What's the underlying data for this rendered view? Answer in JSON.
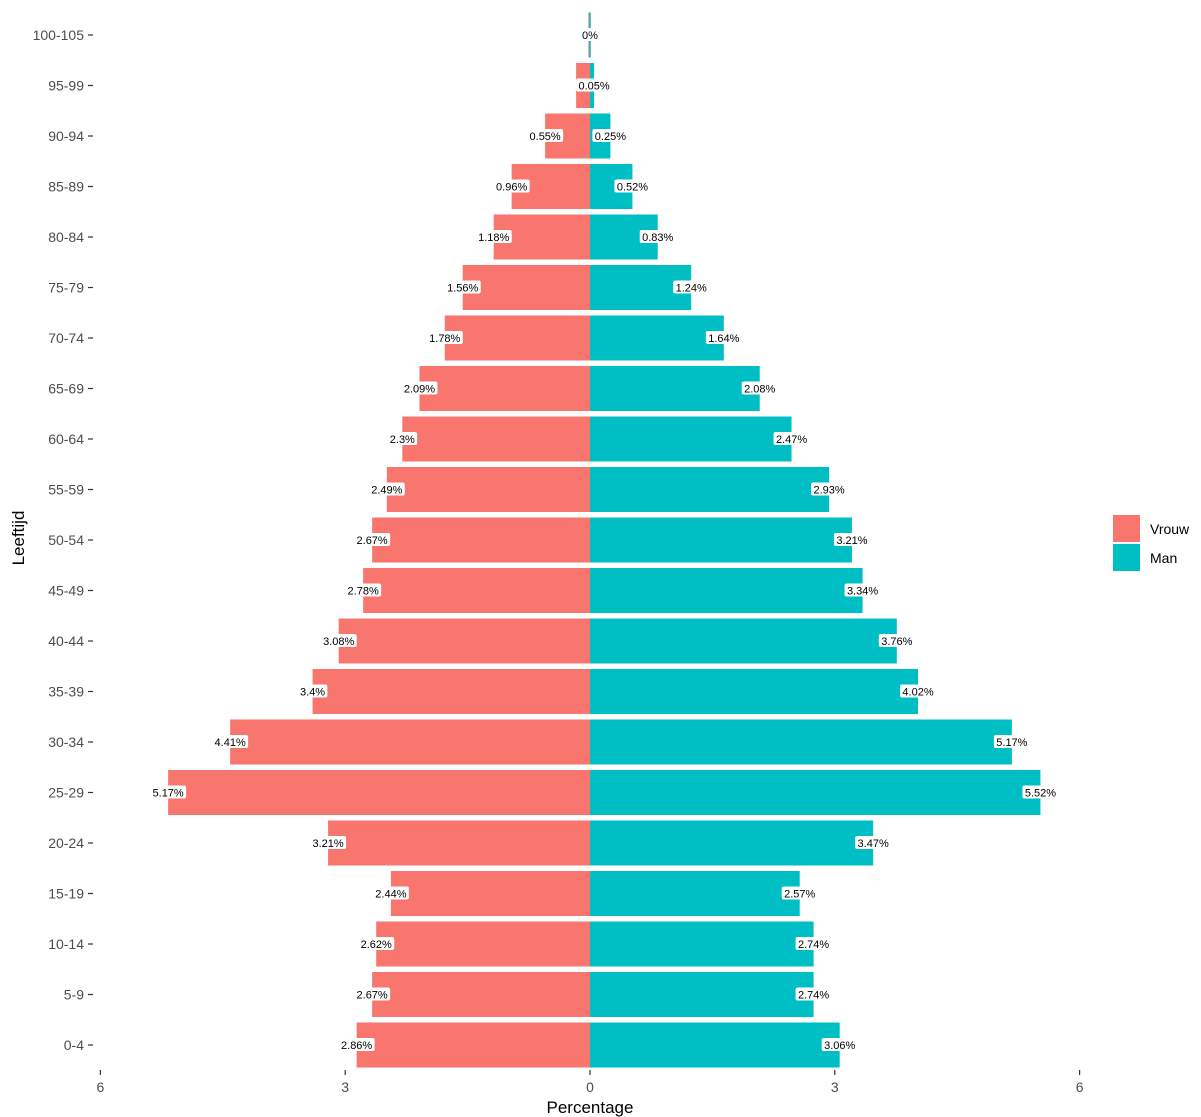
{
  "chart_data": {
    "type": "bar",
    "orientation": "horizontal",
    "subtype": "population-pyramid",
    "xlabel": "Percentage",
    "ylabel": "Leeftijd",
    "xlim": [
      -6,
      6
    ],
    "xticks": [
      -6,
      -3,
      0,
      3,
      6
    ],
    "xtick_labels": [
      "6",
      "3",
      "0",
      "3",
      "6"
    ],
    "grid": false,
    "legend_position": "right",
    "categories": [
      "0-4",
      "5-9",
      "10-14",
      "15-19",
      "20-24",
      "25-29",
      "30-34",
      "35-39",
      "40-44",
      "45-49",
      "50-54",
      "55-59",
      "60-64",
      "65-69",
      "70-74",
      "75-79",
      "80-84",
      "85-89",
      "90-94",
      "95-99",
      "100-105"
    ],
    "series": [
      {
        "name": "Vrouw",
        "color": "#F8766D",
        "side": "left",
        "values": [
          2.86,
          2.67,
          2.62,
          2.44,
          3.21,
          5.17,
          4.41,
          3.4,
          3.08,
          2.78,
          2.67,
          2.49,
          2.3,
          2.09,
          1.78,
          1.56,
          1.18,
          0.96,
          0.55,
          0.17,
          0.02
        ],
        "labels": [
          "2.86%",
          "2.67%",
          "2.62%",
          "2.44%",
          "3.21%",
          "5.17%",
          "4.41%",
          "3.4%",
          "3.08%",
          "2.78%",
          "2.67%",
          "2.49%",
          "2.3%",
          "2.09%",
          "1.78%",
          "1.56%",
          "1.18%",
          "0.96%",
          "0.55%",
          "",
          ""
        ]
      },
      {
        "name": "Man",
        "color": "#00BFC4",
        "side": "right",
        "values": [
          3.06,
          2.74,
          2.74,
          2.57,
          3.47,
          5.52,
          5.17,
          4.02,
          3.76,
          3.34,
          3.21,
          2.93,
          2.47,
          2.08,
          1.64,
          1.24,
          0.83,
          0.52,
          0.25,
          0.05,
          0
        ],
        "labels": [
          "3.06%",
          "2.74%",
          "2.74%",
          "2.57%",
          "3.47%",
          "5.52%",
          "5.17%",
          "4.02%",
          "3.76%",
          "3.34%",
          "3.21%",
          "2.93%",
          "2.47%",
          "2.08%",
          "1.64%",
          "1.24%",
          "0.83%",
          "0.52%",
          "0.25%",
          "0.05%",
          "0%"
        ]
      }
    ]
  }
}
